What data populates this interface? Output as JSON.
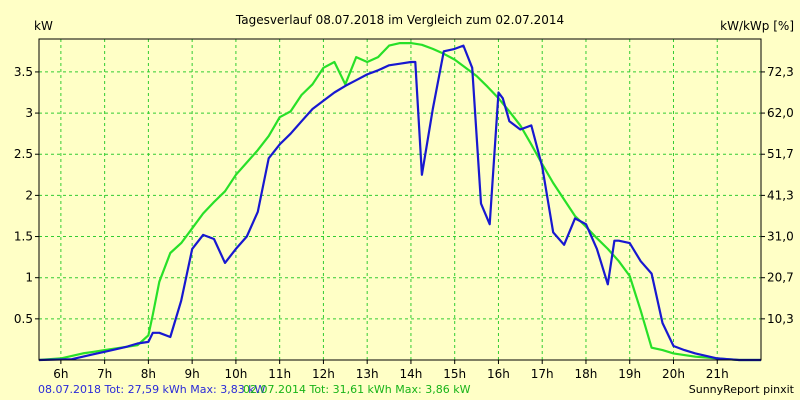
{
  "chart_data": {
    "type": "line",
    "title": "Tagesverlauf 08.07.2018 im Vergleich zum 02.07.2014",
    "ylabel": "kW",
    "ylabel_right": "kW/kWp [%]",
    "xlim": [
      5.5,
      22
    ],
    "ylim": [
      0,
      3.9
    ],
    "grid": true,
    "x_ticks": [
      6,
      7,
      8,
      9,
      10,
      11,
      12,
      13,
      14,
      15,
      16,
      17,
      18,
      19,
      20,
      21
    ],
    "x_tick_labels": [
      "6h",
      "7h",
      "8h",
      "9h",
      "10h",
      "11h",
      "12h",
      "13h",
      "14h",
      "15h",
      "16h",
      "17h",
      "18h",
      "19h",
      "20h",
      "21h"
    ],
    "y_ticks": [
      0.5,
      1,
      1.5,
      2,
      2.5,
      3,
      3.5
    ],
    "y_tick_labels": [
      "0.5",
      "1",
      "1.5",
      "2",
      "2.5",
      "3",
      "3.5"
    ],
    "y_right_ticks": [
      0.5,
      1,
      1.5,
      2,
      2.5,
      3,
      3.5
    ],
    "y_right_tick_labels": [
      "10,3",
      "20,7",
      "31,0",
      "41,3",
      "51,7",
      "62,0",
      "72,3"
    ],
    "series": [
      {
        "name": "08.07.2018",
        "color": "#1818d0",
        "x": [
          5.5,
          6.25,
          6.5,
          6.75,
          7,
          7.25,
          7.5,
          7.75,
          8,
          8.1,
          8.25,
          8.5,
          8.75,
          9,
          9.25,
          9.5,
          9.75,
          10,
          10.25,
          10.5,
          10.75,
          11,
          11.25,
          11.5,
          11.75,
          12,
          12.25,
          12.5,
          12.75,
          13,
          13.25,
          13.5,
          13.75,
          14,
          14.1,
          14.25,
          14.5,
          14.75,
          15,
          15.2,
          15.4,
          15.6,
          15.8,
          16,
          16.1,
          16.25,
          16.5,
          16.75,
          17,
          17.25,
          17.5,
          17.75,
          18,
          18.25,
          18.5,
          18.65,
          18.75,
          19,
          19.25,
          19.5,
          19.75,
          20,
          20.25,
          20.5,
          20.75,
          21,
          21.25,
          21.5,
          21.75,
          22
        ],
        "values": [
          0,
          0.01,
          0.04,
          0.07,
          0.1,
          0.13,
          0.16,
          0.2,
          0.22,
          0.33,
          0.33,
          0.28,
          0.72,
          1.35,
          1.52,
          1.47,
          1.18,
          1.35,
          1.5,
          1.8,
          2.45,
          2.62,
          2.75,
          2.9,
          3.05,
          3.15,
          3.25,
          3.33,
          3.4,
          3.47,
          3.52,
          3.58,
          3.6,
          3.62,
          3.62,
          2.25,
          3.05,
          3.75,
          3.78,
          3.82,
          3.55,
          1.9,
          1.65,
          3.25,
          3.18,
          2.9,
          2.8,
          2.85,
          2.35,
          1.55,
          1.4,
          1.72,
          1.65,
          1.35,
          0.92,
          1.45,
          1.45,
          1.42,
          1.2,
          1.05,
          0.45,
          0.17,
          0.12,
          0.08,
          0.05,
          0.02,
          0.01,
          0,
          0,
          0
        ]
      },
      {
        "name": "02.07.2014",
        "color": "#28e028",
        "x": [
          5.5,
          6,
          6.25,
          6.5,
          6.75,
          7,
          7.25,
          7.5,
          7.75,
          8,
          8.1,
          8.25,
          8.5,
          8.75,
          9,
          9.25,
          9.5,
          9.75,
          10,
          10.25,
          10.5,
          10.75,
          11,
          11.25,
          11.5,
          11.75,
          12,
          12.25,
          12.5,
          12.75,
          13,
          13.25,
          13.5,
          13.75,
          14,
          14.25,
          14.5,
          14.75,
          15,
          15.25,
          15.5,
          15.75,
          16,
          16.25,
          16.5,
          16.75,
          17,
          17.25,
          17.5,
          17.75,
          18,
          18.25,
          18.5,
          18.75,
          19,
          19.25,
          19.5,
          19.75,
          20,
          20.25,
          20.5,
          20.75,
          21,
          21.25,
          21.5,
          21.75,
          22
        ],
        "values": [
          0,
          0.02,
          0.05,
          0.08,
          0.1,
          0.12,
          0.14,
          0.16,
          0.18,
          0.3,
          0.55,
          0.95,
          1.3,
          1.42,
          1.6,
          1.78,
          1.92,
          2.05,
          2.25,
          2.4,
          2.55,
          2.72,
          2.95,
          3.02,
          3.22,
          3.35,
          3.55,
          3.62,
          3.35,
          3.68,
          3.62,
          3.68,
          3.82,
          3.85,
          3.85,
          3.83,
          3.78,
          3.72,
          3.65,
          3.55,
          3.45,
          3.32,
          3.18,
          3.02,
          2.85,
          2.62,
          2.38,
          2.15,
          1.95,
          1.75,
          1.62,
          1.48,
          1.35,
          1.2,
          1.02,
          0.6,
          0.15,
          0.12,
          0.08,
          0.06,
          0.04,
          0.03,
          0.02,
          0.01,
          0,
          0,
          0
        ]
      }
    ],
    "footer_line_1": "08.07.2018 Tot: 27,59 kWh Max: 3,83 kW",
    "footer_line_2": "02.07.2014 Tot: 31,61 kWh Max: 3,86 kW",
    "credit": "SunnyReport pinxit",
    "background_color": "#ffffc6",
    "grid_color": "#33cc33"
  }
}
